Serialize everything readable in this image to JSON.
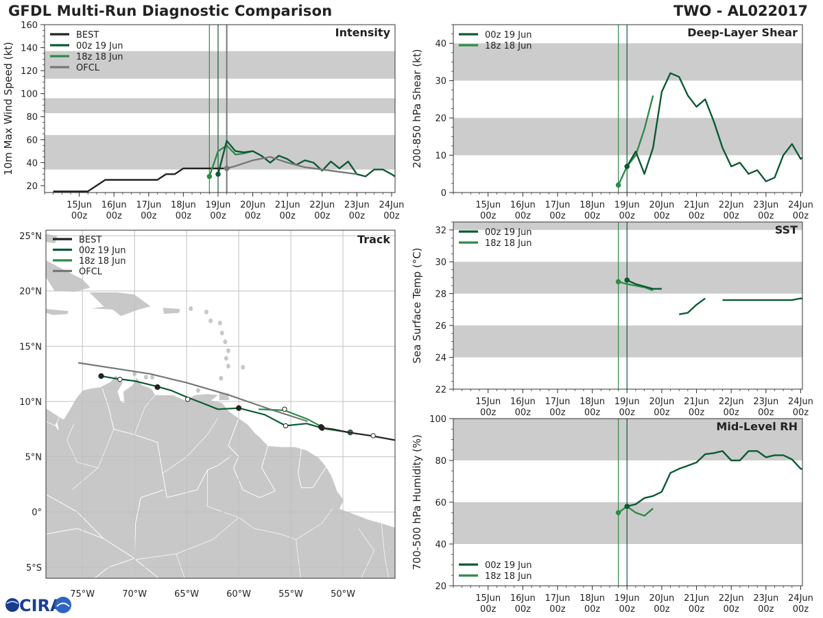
{
  "header": {
    "title": "GFDL Multi-Run Diagnostic Comparison",
    "storm_id": "TWO - AL022017"
  },
  "logo_text": "CIRA",
  "colors": {
    "best": "#222222",
    "run00": "#0b5a32",
    "run18": "#2e8b4a",
    "ofcl": "#777777",
    "band": "#cccccc",
    "land": "#c8c8c8"
  },
  "time_axis": {
    "ticks": [
      {
        "day": "15Jun",
        "hr": "00z"
      },
      {
        "day": "16Jun",
        "hr": "00z"
      },
      {
        "day": "17Jun",
        "hr": "00z"
      },
      {
        "day": "18Jun",
        "hr": "00z"
      },
      {
        "day": "19Jun",
        "hr": "00z"
      },
      {
        "day": "20Jun",
        "hr": "00z"
      },
      {
        "day": "21Jun",
        "hr": "00z"
      },
      {
        "day": "22Jun",
        "hr": "00z"
      },
      {
        "day": "23Jun",
        "hr": "00z"
      },
      {
        "day": "24Jun",
        "hr": "00z"
      }
    ]
  },
  "chart_data": [
    {
      "id": "intensity",
      "type": "line",
      "title": "Intensity",
      "ylabel": "10m Max Wind Speed (kt)",
      "ylim": [
        14,
        160
      ],
      "yticks": [
        20,
        40,
        60,
        80,
        100,
        120,
        140,
        160
      ],
      "bands": [
        [
          34,
          64
        ],
        [
          83,
          96
        ],
        [
          113,
          137
        ]
      ],
      "vlines": [
        {
          "x": 3.75,
          "series": "run18"
        },
        {
          "x": 4.0,
          "series": "run00"
        },
        {
          "x": 4.25,
          "series": "ofcl"
        }
      ],
      "legend": [
        {
          "label": "BEST",
          "series": "best"
        },
        {
          "label": "00z 19 Jun",
          "series": "run00"
        },
        {
          "label": "18z 18 Jun",
          "series": "run18"
        },
        {
          "label": "OFCL",
          "series": "ofcl"
        }
      ],
      "series": [
        {
          "name": "BEST",
          "key": "best",
          "points": [
            [
              -0.75,
              15
            ],
            [
              0.25,
              15
            ],
            [
              0.75,
              25
            ],
            [
              2.25,
              25
            ],
            [
              2.5,
              30
            ],
            [
              2.75,
              30
            ],
            [
              3.0,
              35
            ],
            [
              3.25,
              35
            ],
            [
              3.5,
              35
            ],
            [
              3.75,
              35
            ],
            [
              4.0,
              35
            ],
            [
              4.25,
              35
            ]
          ]
        },
        {
          "name": "18z 18 Jun",
          "key": "run18",
          "points": [
            [
              3.75,
              28
            ],
            [
              4.0,
              50
            ],
            [
              4.25,
              55
            ],
            [
              4.5,
              47
            ],
            [
              4.75,
              48
            ],
            [
              5.0,
              50
            ]
          ],
          "start": [
            3.75,
            28
          ]
        },
        {
          "name": "00z 19 Jun",
          "key": "run00",
          "points": [
            [
              4.0,
              30
            ],
            [
              4.25,
              59
            ],
            [
              4.5,
              50
            ],
            [
              4.75,
              49
            ],
            [
              5.0,
              50
            ],
            [
              5.25,
              46
            ],
            [
              5.5,
              40
            ],
            [
              5.75,
              46
            ],
            [
              6.0,
              43
            ],
            [
              6.25,
              38
            ],
            [
              6.5,
              42
            ],
            [
              6.75,
              40
            ],
            [
              7.0,
              33
            ],
            [
              7.25,
              41
            ],
            [
              7.5,
              35
            ],
            [
              7.75,
              41
            ],
            [
              8.0,
              30
            ],
            [
              8.25,
              28
            ],
            [
              8.5,
              34
            ],
            [
              8.75,
              34
            ],
            [
              9.0,
              30
            ],
            [
              9.25,
              25
            ]
          ],
          "start": [
            4.0,
            30
          ]
        },
        {
          "name": "OFCL",
          "key": "ofcl",
          "points": [
            [
              4.25,
              35
            ],
            [
              4.5,
              37
            ],
            [
              5.0,
              42
            ],
            [
              5.5,
              45
            ],
            [
              6.0,
              40
            ],
            [
              6.5,
              36
            ],
            [
              7.0,
              34
            ],
            [
              7.5,
              32
            ],
            [
              8.0,
              30
            ]
          ],
          "start": [
            4.25,
            35
          ]
        }
      ]
    },
    {
      "id": "shear",
      "type": "line",
      "title": "Deep-Layer Shear",
      "ylabel": "200-850 hPa Shear (kt)",
      "ylim": [
        0,
        45
      ],
      "yticks": [
        0,
        10,
        20,
        30,
        40
      ],
      "bands": [
        [
          10,
          20
        ],
        [
          30,
          40
        ]
      ],
      "vlines": [
        {
          "x": 3.75,
          "series": "run18"
        },
        {
          "x": 4.0,
          "series": "run00"
        }
      ],
      "legend": [
        {
          "label": "00z 19 Jun",
          "series": "run00"
        },
        {
          "label": "18z 18 Jun",
          "series": "run18"
        }
      ],
      "series": [
        {
          "name": "18z 18 Jun",
          "key": "run18",
          "points": [
            [
              3.75,
              2
            ],
            [
              4.0,
              7
            ],
            [
              4.25,
              10
            ],
            [
              4.5,
              17
            ],
            [
              4.75,
              26
            ]
          ],
          "start": [
            3.75,
            2
          ]
        },
        {
          "name": "00z 19 Jun",
          "key": "run00",
          "points": [
            [
              4.0,
              7
            ],
            [
              4.25,
              11
            ],
            [
              4.5,
              5
            ],
            [
              4.75,
              12
            ],
            [
              5.0,
              27
            ],
            [
              5.25,
              32
            ],
            [
              5.5,
              31
            ],
            [
              5.75,
              26
            ],
            [
              6.0,
              23
            ],
            [
              6.25,
              25
            ],
            [
              6.5,
              19
            ],
            [
              6.75,
              12
            ],
            [
              7.0,
              7
            ],
            [
              7.25,
              8
            ],
            [
              7.5,
              5
            ],
            [
              7.75,
              6
            ],
            [
              8.0,
              3
            ],
            [
              8.25,
              4
            ],
            [
              8.5,
              10
            ],
            [
              8.75,
              13
            ],
            [
              9.0,
              9
            ],
            [
              9.25,
              11
            ]
          ],
          "start": [
            4.0,
            7
          ]
        }
      ]
    },
    {
      "id": "sst",
      "type": "line",
      "title": "SST",
      "ylabel": "Sea Surface Temp (°C)",
      "ylim": [
        22,
        32.5
      ],
      "yticks": [
        22,
        24,
        26,
        28,
        30,
        32
      ],
      "bands": [
        [
          24,
          26
        ],
        [
          28,
          30
        ],
        [
          32,
          32.5
        ]
      ],
      "vlines": [
        {
          "x": 3.75,
          "series": "run18"
        },
        {
          "x": 4.0,
          "series": "run00"
        }
      ],
      "legend": [
        {
          "label": "00z 19 Jun",
          "series": "run00"
        },
        {
          "label": "18z 18 Jun",
          "series": "run18"
        }
      ],
      "series": [
        {
          "name": "18z 18 Jun",
          "key": "run18",
          "points": [
            [
              3.75,
              28.75
            ],
            [
              4.0,
              28.6
            ],
            [
              4.25,
              28.5
            ],
            [
              4.5,
              28.4
            ],
            [
              4.75,
              28.2
            ]
          ],
          "start": [
            3.75,
            28.75
          ]
        },
        {
          "name": "00z 19 Jun",
          "key": "run00",
          "points": [
            [
              4.0,
              28.85
            ],
            [
              4.25,
              28.6
            ],
            [
              4.5,
              28.45
            ],
            [
              4.75,
              28.3
            ],
            [
              5.0,
              28.3
            ]
          ],
          "start": [
            4.0,
            28.85
          ]
        },
        {
          "name": "00z 19 Jun",
          "key": "run00",
          "points": [
            [
              5.5,
              26.7
            ],
            [
              5.75,
              26.8
            ],
            [
              6.0,
              27.3
            ],
            [
              6.25,
              27.7
            ]
          ]
        },
        {
          "name": "00z 19 Jun",
          "key": "run00",
          "points": [
            [
              6.75,
              27.6
            ],
            [
              7.0,
              27.6
            ],
            [
              7.5,
              27.6
            ],
            [
              8.0,
              27.6
            ],
            [
              8.5,
              27.6
            ],
            [
              8.75,
              27.6
            ],
            [
              9.0,
              27.7
            ],
            [
              9.25,
              27.6
            ]
          ]
        }
      ]
    },
    {
      "id": "rh",
      "type": "line",
      "title": "Mid-Level RH",
      "ylabel": "700-500 hPa Humidity (%)",
      "ylim": [
        20,
        100
      ],
      "yticks": [
        20,
        40,
        60,
        80,
        100
      ],
      "bands": [
        [
          40,
          60
        ],
        [
          80,
          100
        ]
      ],
      "vlines": [
        {
          "x": 3.75,
          "series": "run18"
        },
        {
          "x": 4.0,
          "series": "run00"
        }
      ],
      "legend": [
        {
          "label": "00z 19 Jun",
          "series": "run00"
        },
        {
          "label": "18z 18 Jun",
          "series": "run18"
        }
      ],
      "series": [
        {
          "name": "18z 18 Jun",
          "key": "run18",
          "points": [
            [
              3.75,
              55
            ],
            [
              4.0,
              58
            ],
            [
              4.25,
              55
            ],
            [
              4.5,
              53.5
            ],
            [
              4.75,
              57
            ]
          ],
          "start": [
            3.75,
            55
          ]
        },
        {
          "name": "00z 19 Jun",
          "key": "run00",
          "points": [
            [
              4.0,
              58
            ],
            [
              4.25,
              59
            ],
            [
              4.5,
              62
            ],
            [
              4.75,
              63
            ],
            [
              5.0,
              65
            ],
            [
              5.25,
              74
            ],
            [
              5.5,
              76
            ],
            [
              5.75,
              77.5
            ],
            [
              6.0,
              79
            ],
            [
              6.25,
              83
            ],
            [
              6.5,
              83.5
            ],
            [
              6.75,
              84.5
            ],
            [
              7.0,
              80
            ],
            [
              7.25,
              80
            ],
            [
              7.5,
              84.5
            ],
            [
              7.75,
              84.5
            ],
            [
              8.0,
              81.5
            ],
            [
              8.25,
              82.5
            ],
            [
              8.5,
              82.5
            ],
            [
              8.75,
              80.5
            ],
            [
              9.0,
              76
            ],
            [
              9.25,
              75.5
            ]
          ],
          "start": [
            4.0,
            58
          ]
        }
      ]
    },
    {
      "id": "track",
      "type": "scatter",
      "title": "Track",
      "xlim": [
        -78.5,
        -45
      ],
      "ylim": [
        -6,
        25.5
      ],
      "xticks": [
        {
          "lon": -75,
          "label": "75°W"
        },
        {
          "lon": -70,
          "label": "70°W"
        },
        {
          "lon": -65,
          "label": "65°W"
        },
        {
          "lon": -60,
          "label": "60°W"
        },
        {
          "lon": -55,
          "label": "55°W"
        },
        {
          "lon": -50,
          "label": "50°W"
        }
      ],
      "yticks": [
        {
          "lat": -5,
          "label": "5°S"
        },
        {
          "lat": 0,
          "label": "0°"
        },
        {
          "lat": 5,
          "label": "5°N"
        },
        {
          "lat": 10,
          "label": "10°N"
        },
        {
          "lat": 15,
          "label": "15°N"
        },
        {
          "lat": 20,
          "label": "20°N"
        },
        {
          "lat": 25,
          "label": "25°N"
        }
      ],
      "legend": [
        {
          "label": "BEST",
          "series": "best"
        },
        {
          "label": "00z 19 Jun",
          "series": "run00"
        },
        {
          "label": "18z 18 Jun",
          "series": "run18"
        },
        {
          "label": "OFCL",
          "series": "ofcl"
        }
      ],
      "series": [
        {
          "name": "OFCL",
          "key": "ofcl",
          "points": [
            [
              -53.4,
              8.2
            ],
            [
              -57,
              9.3
            ],
            [
              -61,
              10.6
            ],
            [
              -65,
              11.7
            ],
            [
              -68.5,
              12.5
            ],
            [
              -75.4,
              13.5
            ]
          ]
        },
        {
          "name": "00z 19 Jun",
          "key": "run00",
          "points": [
            [
              -52.0,
              7.6
            ],
            [
              -53.5,
              8.0
            ],
            [
              -55.5,
              7.8
            ],
            [
              -57.5,
              8.8
            ],
            [
              -60,
              9.4
            ],
            [
              -62,
              9.3
            ],
            [
              -63.6,
              9.9
            ],
            [
              -65,
              10.4
            ],
            [
              -66.5,
              11.0
            ],
            [
              -68,
              11.4
            ],
            [
              -70,
              11.85
            ],
            [
              -72,
              12.1
            ],
            [
              -73.2,
              12.3
            ]
          ],
          "markers": [
            [
              -52.0,
              7.6,
              "filled"
            ],
            [
              -55.5,
              7.8,
              "open"
            ],
            [
              -60,
              9.4,
              "filled"
            ],
            [
              -64.9,
              10.2,
              "open"
            ],
            [
              -67.8,
              11.3,
              "filled"
            ],
            [
              -71.4,
              12.0,
              "open"
            ],
            [
              -73.2,
              12.3,
              "filled"
            ]
          ]
        },
        {
          "name": "18z 18 Jun",
          "key": "run18",
          "points": [
            [
              -49.3,
              7.2
            ],
            [
              -51.6,
              7.5
            ],
            [
              -53.4,
              8.4
            ],
            [
              -55.6,
              9.2
            ],
            [
              -58.1,
              9.3
            ]
          ],
          "markers": [
            [
              -49.3,
              7.2,
              "filled"
            ],
            [
              -55.6,
              9.3,
              "open"
            ]
          ]
        },
        {
          "name": "BEST",
          "key": "best",
          "points": [
            [
              -45,
              6.5
            ],
            [
              -47.3,
              6.9
            ],
            [
              -49.5,
              7.2
            ],
            [
              -51.0,
              7.5
            ],
            [
              -51.9,
              7.6
            ]
          ],
          "markers": [
            [
              -47.1,
              6.9,
              "open"
            ],
            [
              -52.1,
              7.7,
              "filled"
            ]
          ]
        }
      ]
    }
  ]
}
